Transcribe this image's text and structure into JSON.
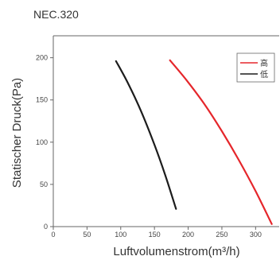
{
  "chart_data": {
    "type": "line",
    "title": "NEC.320",
    "xlabel": "Luftvolumenstrom(m³/h)",
    "ylabel": "Statischer Druck(Pa)",
    "xlim": [
      0,
      335
    ],
    "ylim": [
      0,
      226
    ],
    "xticks": [
      0,
      50,
      100,
      150,
      200,
      250,
      300
    ],
    "yticks": [
      0,
      50,
      100,
      150,
      200
    ],
    "grid": false,
    "legend_position": "top-right",
    "series": [
      {
        "name": "高",
        "color": "#e5262b",
        "points": [
          [
            173,
            197
          ],
          [
            198,
            173
          ],
          [
            225,
            144
          ],
          [
            250,
            113
          ],
          [
            275,
            79
          ],
          [
            300,
            42
          ],
          [
            324,
            3
          ]
        ]
      },
      {
        "name": "低",
        "color": "#1c1c1c",
        "points": [
          [
            93,
            196
          ],
          [
            110,
            171
          ],
          [
            130,
            137
          ],
          [
            150,
            97
          ],
          [
            166,
            61
          ],
          [
            182,
            21
          ]
        ]
      }
    ]
  }
}
